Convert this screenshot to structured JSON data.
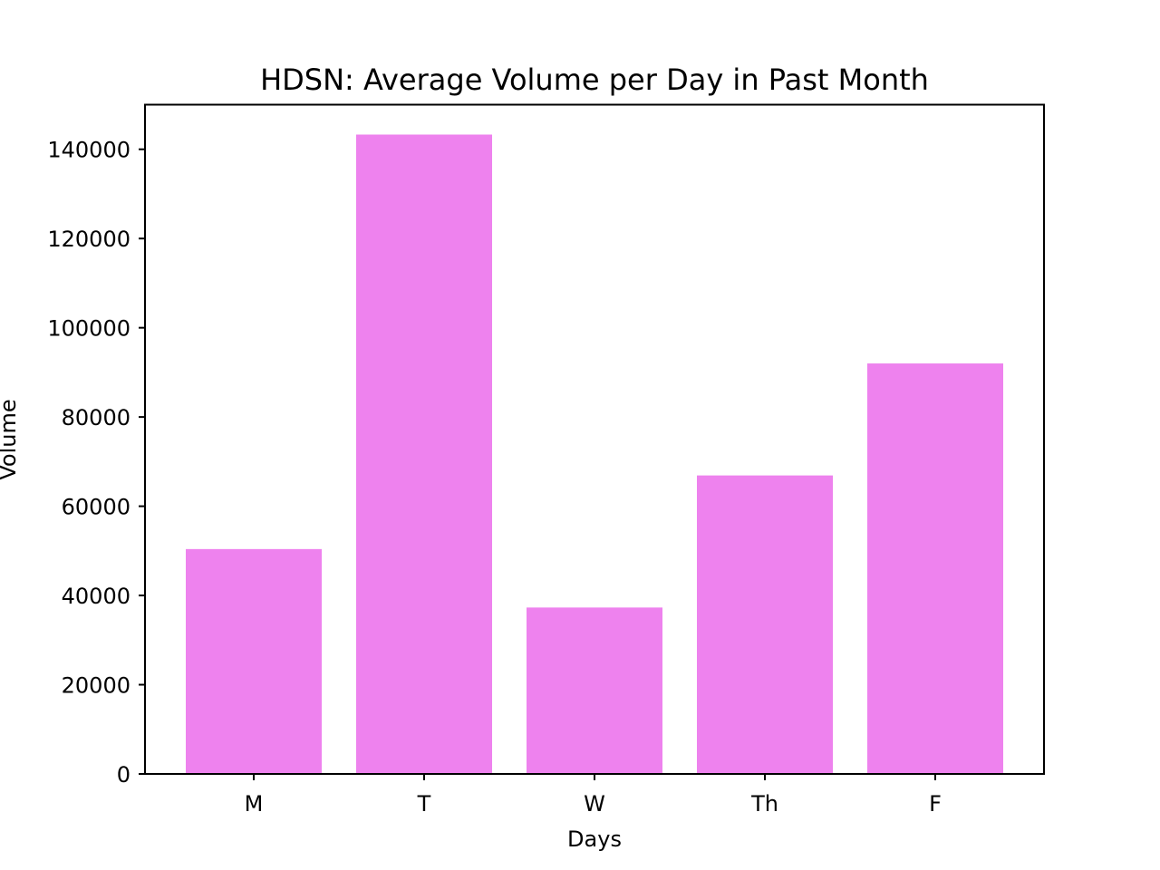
{
  "chart_data": {
    "type": "bar",
    "title": "HDSN: Average Volume per Day in Past Month",
    "xlabel": "Days",
    "ylabel": "Volume",
    "categories": [
      "M",
      "T",
      "W",
      "Th",
      "F"
    ],
    "values": [
      50400,
      143300,
      37300,
      66900,
      92000
    ],
    "ylim": [
      0,
      150000
    ],
    "yticks": [
      0,
      20000,
      40000,
      60000,
      80000,
      100000,
      120000,
      140000
    ],
    "grid": false,
    "legend": "none",
    "bar_color": "#ee82ee"
  }
}
